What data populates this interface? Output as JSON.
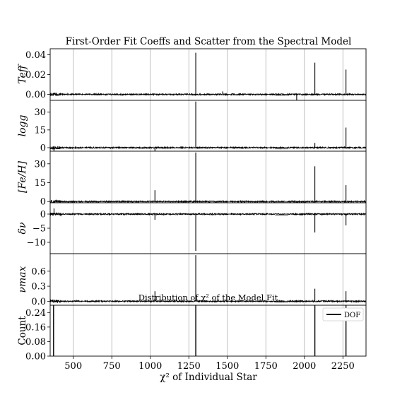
{
  "figure": {
    "title": "First-Order Fit Coeffs and Scatter from the Spectral Model",
    "xlabel": "χ² of Individual Star"
  },
  "chart_data": [
    {
      "type": "line",
      "panel": "teff",
      "ylabel": "Teff",
      "ylim": [
        -0.006,
        0.046
      ],
      "yticks": [
        "0.00",
        "0.02",
        "0.04"
      ],
      "ytick_values": [
        0,
        0.02,
        0.04
      ],
      "xlim": [
        350,
        2400
      ],
      "grid": "vertical",
      "spikes": [
        {
          "x": 1295,
          "value": 0.042
        },
        {
          "x": 2068,
          "value": 0.032
        },
        {
          "x": 2270,
          "value": 0.025
        },
        {
          "x": 1950,
          "value": -0.006
        },
        {
          "x": 1470,
          "value": 0.003
        }
      ]
    },
    {
      "type": "line",
      "panel": "logg",
      "ylabel": "logg",
      "ylim": [
        -3,
        40
      ],
      "yticks": [
        "0",
        "15",
        "30"
      ],
      "ytick_values": [
        0,
        15,
        30
      ],
      "xlim": [
        350,
        2400
      ],
      "grid": "vertical",
      "spikes": [
        {
          "x": 1295,
          "value": 39
        },
        {
          "x": 2270,
          "value": 17
        },
        {
          "x": 2068,
          "value": 4
        },
        {
          "x": 1030,
          "value": -3
        },
        {
          "x": 375,
          "value": -3
        }
      ]
    },
    {
      "type": "line",
      "panel": "feh",
      "ylabel": "[Fe/H]",
      "ylim": [
        -1,
        40
      ],
      "yticks": [
        "0",
        "15",
        "30"
      ],
      "ytick_values": [
        0,
        15,
        30
      ],
      "xlim": [
        350,
        2400
      ],
      "grid": "vertical",
      "spikes": [
        {
          "x": 1295,
          "value": 39
        },
        {
          "x": 2068,
          "value": 28
        },
        {
          "x": 2270,
          "value": 13
        },
        {
          "x": 1030,
          "value": 9
        }
      ]
    },
    {
      "type": "line",
      "panel": "dnu",
      "ylabel": "δν",
      "ylim": [
        -14,
        4
      ],
      "yticks": [
        "0",
        "−5",
        "−10"
      ],
      "ytick_values": [
        0,
        -5,
        -10
      ],
      "xlim": [
        350,
        2400
      ],
      "grid": "vertical",
      "spikes": [
        {
          "x": 1295,
          "value": -13
        },
        {
          "x": 2068,
          "value": -6.5
        },
        {
          "x": 2270,
          "value": -4
        },
        {
          "x": 1030,
          "value": -2
        },
        {
          "x": 375,
          "value": 2
        }
      ]
    },
    {
      "type": "line",
      "panel": "numax",
      "ylabel": "νmax",
      "ylim": [
        -0.08,
        0.95
      ],
      "yticks": [
        "0.0",
        "0.3",
        "0.6"
      ],
      "ytick_values": [
        0,
        0.3,
        0.6
      ],
      "xlim": [
        350,
        2400
      ],
      "grid": "vertical",
      "spikes": [
        {
          "x": 1295,
          "value": 0.92
        },
        {
          "x": 2068,
          "value": 0.25
        },
        {
          "x": 2270,
          "value": 0.2
        },
        {
          "x": 1030,
          "value": 0.2
        }
      ]
    },
    {
      "type": "bar",
      "panel": "dof",
      "title": "Distribution of χ² of the Model Fit",
      "ylabel": "Count",
      "ylim": [
        0,
        0.28
      ],
      "yticks": [
        "0.00",
        "0.08",
        "0.16",
        "0.24"
      ],
      "ytick_values": [
        0,
        0.08,
        0.16,
        0.24
      ],
      "xlim": [
        350,
        2400
      ],
      "xticks": [
        "500",
        "750",
        "1000",
        "1250",
        "1500",
        "1750",
        "2000",
        "2250"
      ],
      "xtick_values": [
        500,
        750,
        1000,
        1250,
        1500,
        1750,
        2000,
        2250
      ],
      "grid": "vertical",
      "legend": "DOF",
      "legend_position": "upper-right",
      "bars": [
        {
          "x": 372,
          "value": 0.28
        },
        {
          "x": 1295,
          "value": 0.28
        },
        {
          "x": 2068,
          "value": 0.28
        },
        {
          "x": 2270,
          "value": 0.28
        }
      ]
    }
  ]
}
